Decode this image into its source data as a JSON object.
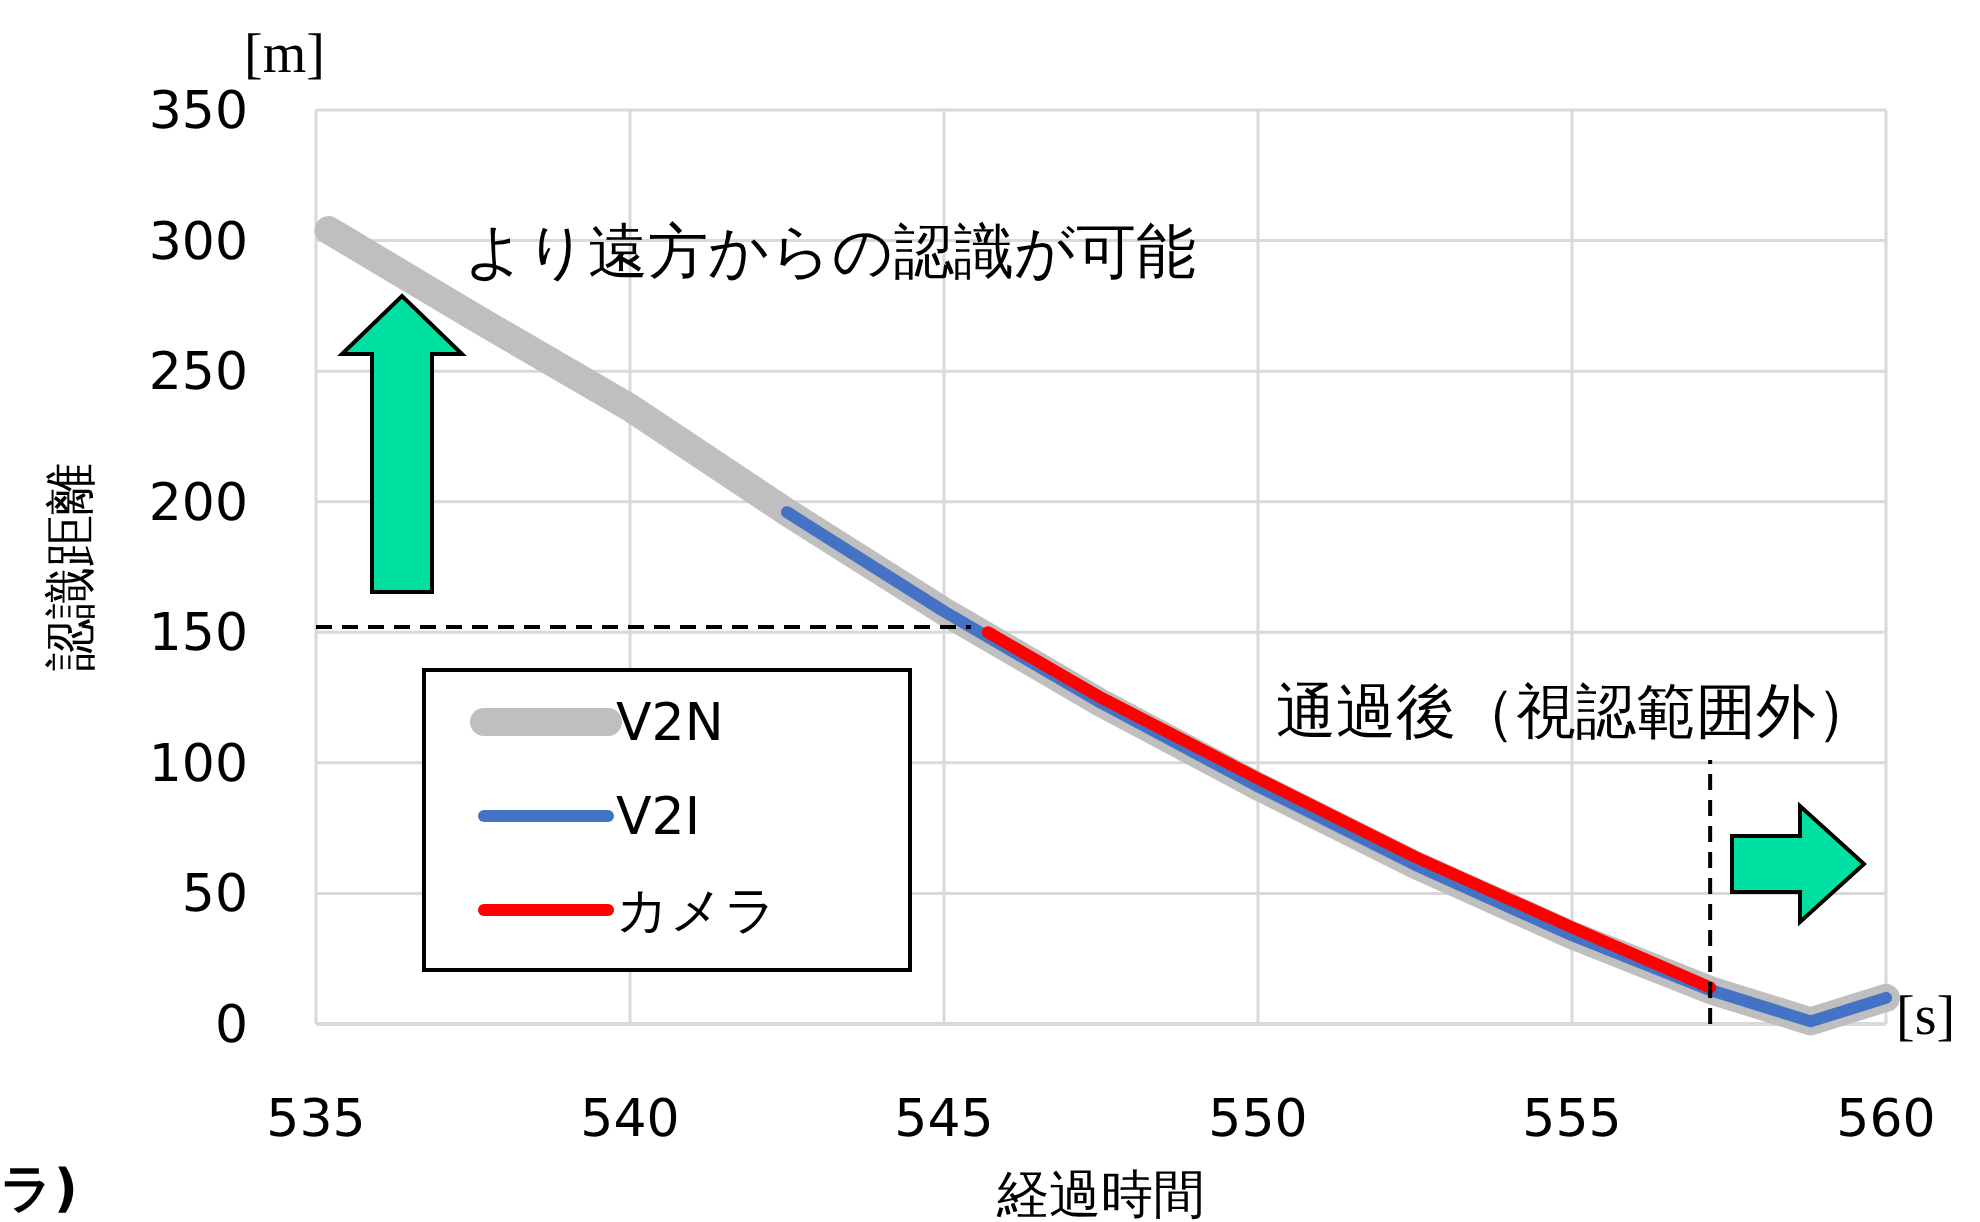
{
  "chart_data": {
    "type": "line",
    "xlabel": "経過時間",
    "ylabel": "認識距離",
    "xlim": [
      535,
      560
    ],
    "xticks": [
      535,
      540,
      545,
      550,
      555,
      560
    ],
    "ylim": [
      0,
      350
    ],
    "yticks": [
      0,
      50,
      100,
      150,
      200,
      250,
      300,
      350
    ],
    "grid": true,
    "legend": "bottom left",
    "series": [
      {
        "name": "V2N",
        "color": "#bfbfbf",
        "x": [
          535.2,
          537.5,
          540,
          542.5,
          545,
          547.5,
          550,
          552.5,
          555,
          557.2,
          558.8,
          560
        ],
        "values": [
          304,
          271,
          236,
          196,
          158,
          123,
          91,
          61,
          34,
          13,
          1,
          10
        ]
      },
      {
        "name": "V2I",
        "color": "#4472c4",
        "x": [
          542.5,
          545,
          547.5,
          550,
          552.5,
          555,
          557.2,
          558.8,
          560
        ],
        "values": [
          196,
          158,
          123,
          91,
          61,
          34,
          13,
          1,
          10
        ]
      },
      {
        "name": "カメラ",
        "color": "#ff0000",
        "x": [
          545.7,
          547.5,
          550,
          552.5,
          555,
          557.2
        ],
        "values": [
          150,
          125,
          94,
          64,
          37,
          14
        ]
      }
    ],
    "ref_lines": [
      {
        "axis": "y",
        "value": 152,
        "line_style": "dashed",
        "color": "#000000"
      },
      {
        "axis": "x",
        "value": 557.2,
        "line_style": "dashed",
        "color": "#000000"
      }
    ],
    "annotations": [
      "[m]",
      "[s]",
      "より遠方からの認識が可能",
      "通過後（視認範囲外）",
      "ラ)"
    ]
  }
}
